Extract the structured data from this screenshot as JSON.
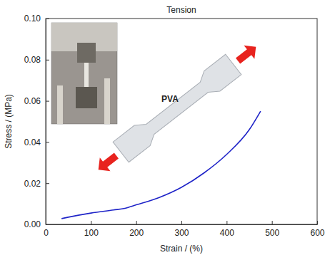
{
  "chart_data": {
    "type": "line",
    "title": "Tension",
    "x_label": "Strain / (%)",
    "y_label": "Stress / (MPa)",
    "x": [
      35,
      50,
      100,
      150,
      175,
      200,
      250,
      300,
      350,
      400,
      450,
      475
    ],
    "series": [
      {
        "color": "#1f24c8",
        "line_style": "solid",
        "marker": "none",
        "values": [
          0.0028,
          0.0035,
          0.0055,
          0.007,
          0.0078,
          0.0095,
          0.013,
          0.018,
          0.025,
          0.034,
          0.046,
          0.055
        ]
      }
    ],
    "xlim": [
      0,
      600
    ],
    "xticks": [
      0,
      100,
      200,
      300,
      400,
      500,
      600
    ],
    "ylim": [
      0,
      0.1
    ],
    "yticks": [
      {
        "value": 0,
        "label": "0.00"
      },
      0.02,
      0.04,
      0.06,
      0.08,
      {
        "value": 0.1,
        "label": "0.10"
      }
    ],
    "grid": false,
    "annotations": [
      {
        "text": "PVA"
      }
    ]
  }
}
